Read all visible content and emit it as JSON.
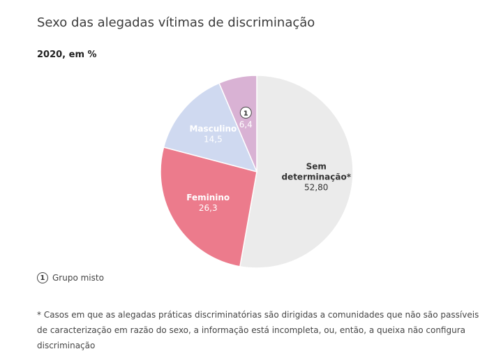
{
  "chart_data": {
    "type": "pie",
    "title": "Sexo das alegadas vítimas de discriminação",
    "subtitle": "2020, em %",
    "slices": [
      {
        "key": "sem",
        "label_lines": [
          "Sem",
          "determinação*"
        ],
        "value_label": "52,80",
        "value": 52.8,
        "color": "#ebebeb",
        "text_color": "#333333",
        "bold_label": true
      },
      {
        "key": "feminino",
        "label_lines": [
          "Feminino"
        ],
        "value_label": "26,3",
        "value": 26.3,
        "color": "#ec7b8c",
        "text_color": "#ffffff",
        "bold_label": true
      },
      {
        "key": "masculino",
        "label_lines": [
          "Masculino"
        ],
        "value_label": "14,5",
        "value": 14.5,
        "color": "#cfd9f0",
        "text_color": "#ffffff",
        "bold_label": true
      },
      {
        "key": "misto",
        "label_lines": [],
        "badge": "1",
        "value_label": "6,4",
        "value": 6.4,
        "color": "#d9b2d4",
        "text_color": "#ffffff",
        "bold_label": false
      }
    ],
    "legend": [
      {
        "badge": "1",
        "text": "Grupo misto"
      }
    ],
    "footnote": "* Casos em que as alegadas práticas discriminatórias são dirigidas a comunidades que não são passíveis de caracterização em razão do sexo, a informação está incompleta, ou, então, a queixa não configura discriminação"
  }
}
